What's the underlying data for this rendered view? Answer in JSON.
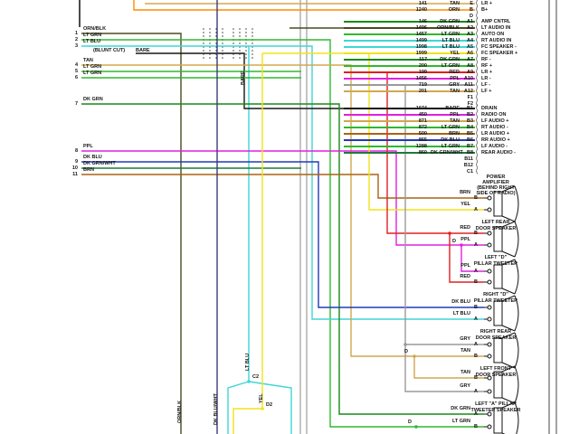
{
  "page": {
    "background": "#ffffff"
  },
  "wire_colors": {
    "ORN/BLK": "#4a4a22",
    "LT GRN": "#2eb82e",
    "LT BLU": "#3fd6d6",
    "TAN": "#d0a84f",
    "DK GRN": "#168a16",
    "PPL": "#e020e0",
    "DK BLU": "#2238b8",
    "DK GRN/WHT": "#1c7a3c",
    "BRN": "#a86414",
    "BARE": "#161616",
    "ORN": "#ff8c00",
    "YEL": "#f2e21a",
    "RED": "#e02020",
    "GRY": "#9a9a9a",
    "DK BLU/WHT": "#3c3c78"
  },
  "diagram": {
    "left_connector": {
      "pins": [
        {
          "n": "1",
          "color": "ORN/BLK"
        },
        {
          "n": "2",
          "color": "LT GRN"
        },
        {
          "n": "3",
          "color": "LT BLU"
        },
        {
          "n": "4",
          "color": "TAN"
        },
        {
          "n": "5",
          "color": "LT GRN"
        },
        {
          "n": "6",
          "color": "LT GRN"
        },
        {
          "n": "7",
          "color": "DK GRN"
        },
        {
          "n": "8",
          "color": "PPL"
        },
        {
          "n": "9",
          "color": "DK BLU"
        },
        {
          "n": "10",
          "color": "DK GRN/WHT"
        },
        {
          "n": "11",
          "color": "BRN"
        }
      ],
      "blunt_cut": "(BLUNT CUT)",
      "bare": "BARE"
    },
    "amp_connector": {
      "top_rows": [
        {
          "wire": "141",
          "color": "TAN",
          "pin": "E",
          "label": "LR +"
        },
        {
          "wire": "1240",
          "color": "ORN",
          "pin": "B",
          "label": "B+"
        },
        {
          "wire": "",
          "color": "",
          "pin": "D",
          "label": ""
        }
      ],
      "a_rows": [
        {
          "wire": "146",
          "color": "DK GRN",
          "pin": "A1",
          "label": "AMP CNTRL"
        },
        {
          "wire": "1496",
          "color": "ORN/BLK",
          "pin": "A2",
          "label": "LT AUDIO IN"
        },
        {
          "wire": "1457",
          "color": "LT GRN",
          "pin": "A3",
          "label": "AUTO ON"
        },
        {
          "wire": "1499",
          "color": "LT BLU",
          "pin": "A4",
          "label": "RT AUDIO IN"
        },
        {
          "wire": "1998",
          "color": "LT BLU",
          "pin": "A5",
          "label": "FC SPEAKER -"
        },
        {
          "wire": "1999",
          "color": "YEL",
          "pin": "A6",
          "label": "FC SPEAKER +"
        },
        {
          "wire": "117",
          "color": "DK GRN",
          "pin": "A7",
          "label": "RF -"
        },
        {
          "wire": "200",
          "color": "LT GRN",
          "pin": "A8",
          "label": "RF +"
        },
        {
          "wire": "199",
          "color": "RED",
          "pin": "A9",
          "label": "LR +"
        },
        {
          "wire": "1456",
          "color": "PPL",
          "pin": "A10",
          "label": "LR -"
        },
        {
          "wire": "719",
          "color": "GRY",
          "pin": "A11",
          "label": "LF -"
        },
        {
          "wire": "201",
          "color": "TAN",
          "pin": "A12",
          "label": "LF +"
        }
      ],
      "mid_pins": [
        "F1",
        "F2"
      ],
      "b_rows": [
        {
          "wire": "1074",
          "color": "BARE",
          "pin": "B1",
          "label": "DRAIN"
        },
        {
          "wire": "450",
          "color": "PPL",
          "pin": "B2",
          "label": "RADIO ON"
        },
        {
          "wire": "871",
          "color": "TAN",
          "pin": "B3",
          "label": "LF AUDIO +"
        },
        {
          "wire": "872",
          "color": "LT GRN",
          "pin": "B4",
          "label": "RT AUDIO -"
        },
        {
          "wire": "500",
          "color": "BRN",
          "pin": "B5",
          "label": "LR AUDIO +"
        },
        {
          "wire": "865",
          "color": "DK BLU",
          "pin": "B6",
          "label": "RR AUDIO +"
        },
        {
          "wire": "1288",
          "color": "LT GRN",
          "pin": "B7",
          "label": "LF AUDIO -"
        },
        {
          "wire": "860",
          "color": "DK GRN/WHT",
          "pin": "B8",
          "label": "REAR AUDIO -"
        }
      ],
      "end_pins": [
        "B11",
        "B12",
        "C1"
      ]
    },
    "amp_label": [
      "POWER",
      "AMPLIFIER",
      "(BEHIND RIGHT",
      "SIDE OF RADIO)"
    ],
    "speakers": [
      {
        "top": {
          "pin": "B",
          "color": "BRN"
        },
        "bottom": {
          "pin": "A",
          "color": "YEL"
        },
        "name": [
          "LEFT REAR",
          "DOOR SPEAKER"
        ]
      },
      {
        "top": {
          "pin": "B",
          "color": "RED"
        },
        "bottom": {
          "pin": "A",
          "color": "PPL"
        },
        "name": [
          "LEFT \"D\"",
          "PILLAR TWEETER"
        ]
      },
      {
        "top": {
          "pin": "A",
          "color": "PPL"
        },
        "bottom": {
          "pin": "B",
          "color": "RED"
        },
        "name": [
          "RIGHT \"D\"",
          "PILLAR TWEETER"
        ]
      },
      {
        "top": {
          "pin": "B",
          "color": "DK BLU"
        },
        "bottom": {
          "pin": "A",
          "color": "LT BLU"
        },
        "name": [
          "RIGHT REAR",
          "DOOR SPEAKER"
        ]
      },
      {
        "top": {
          "pin": "A",
          "color": "GRY"
        },
        "bottom": {
          "pin": "B",
          "color": "TAN"
        },
        "name": [
          "LEFT FRONT",
          "DOOR SPEAKER"
        ]
      },
      {
        "top": {
          "pin": "B",
          "color": "TAN"
        },
        "bottom": {
          "pin": "A",
          "color": "GRY"
        },
        "name": [
          "LEFT \"A\" PILLAR",
          "TWEETER SPEAKER"
        ]
      },
      {
        "top": {
          "pin": "A",
          "color": "DK GRN"
        },
        "bottom": {
          "pin": "B",
          "color": "LT GRN"
        },
        "name": []
      }
    ],
    "splices": [
      {
        "label": "C2"
      },
      {
        "label": "D2"
      },
      {
        "label": "D"
      },
      {
        "label": "D"
      },
      {
        "label": "D"
      },
      {
        "label": ""
      },
      {
        "label": ""
      }
    ],
    "rotated_labels": [
      "BARE",
      "ORN/BLK",
      "DK BLU/WHT",
      "LT BLU",
      "YEL"
    ]
  }
}
